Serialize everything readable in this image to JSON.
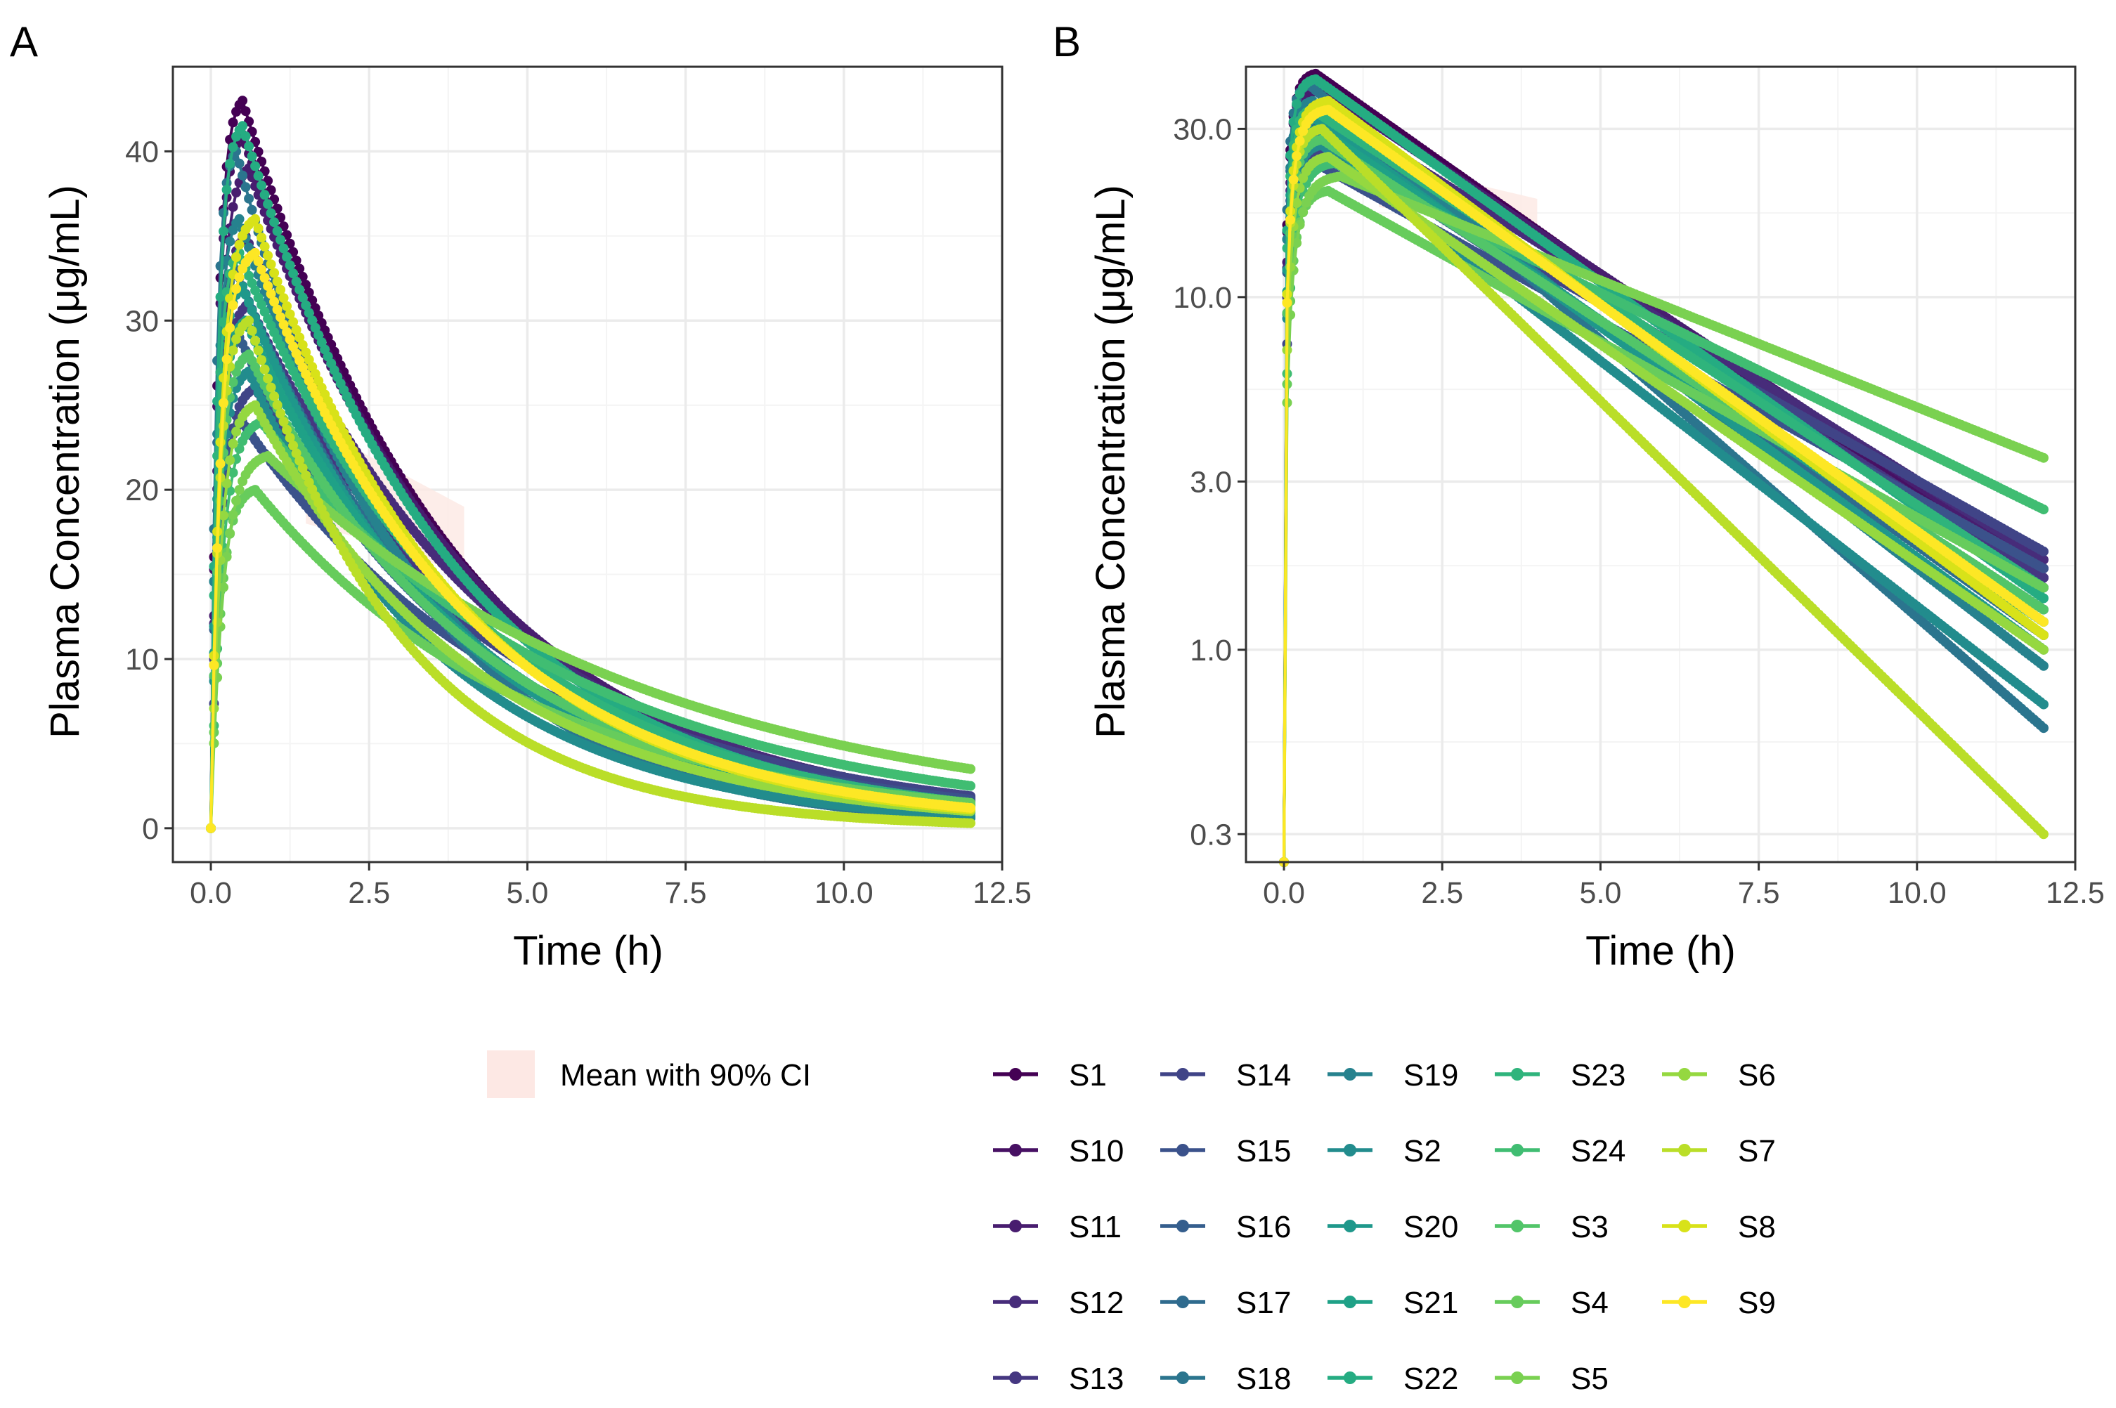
{
  "colors": {
    "panel_border": "#333333",
    "grid_major": "#ebebeb",
    "grid_minor": "#f4f4f4",
    "ci_fill": "#fde8e4",
    "tick_text": "#4d4d4d"
  },
  "panels": [
    {
      "tag": "A",
      "xlabel": "Time (h)",
      "ylabel": "Plasma Concentration (μg/mL)",
      "yscale": "linear",
      "xlim": [
        -0.6,
        12.5
      ],
      "ylim": [
        -2,
        45
      ],
      "xticks": [
        "0.0",
        "2.5",
        "5.0",
        "7.5",
        "10.0",
        "12.5"
      ],
      "yticks": [
        "0",
        "10",
        "20",
        "30",
        "40"
      ]
    },
    {
      "tag": "B",
      "xlabel": "Time (h)",
      "ylabel": "Plasma Concentration (μg/mL)",
      "yscale": "log10",
      "xlim": [
        -0.6,
        12.5
      ],
      "ylim": [
        0.25,
        45
      ],
      "xticks": [
        "0.0",
        "2.5",
        "5.0",
        "7.5",
        "10.0",
        "12.5"
      ],
      "yticks": [
        "0.3",
        "1.0",
        "3.0",
        "10.0",
        "30.0"
      ]
    }
  ],
  "legend": {
    "ci_label": "Mean with 90% CI",
    "subjects": [
      "S1",
      "S10",
      "S11",
      "S12",
      "S13",
      "S14",
      "S15",
      "S16",
      "S17",
      "S18",
      "S19",
      "S2",
      "S20",
      "S21",
      "S22",
      "S23",
      "S24",
      "S3",
      "S4",
      "S5",
      "S6",
      "S7",
      "S8",
      "S9"
    ]
  },
  "chart_data": {
    "type": "line",
    "x_label": "Time (h)",
    "y_label": "Plasma Concentration (μg/mL)",
    "x_range": [
      0,
      12
    ],
    "subjects": [
      {
        "name": "S1",
        "color": "#440154",
        "cmax": 43.0,
        "tmax": 0.5,
        "c12": 1.5
      },
      {
        "name": "S10",
        "color": "#471063",
        "cmax": 41.0,
        "tmax": 0.5,
        "c12": 1.6
      },
      {
        "name": "S11",
        "color": "#481d6f",
        "cmax": 39.0,
        "tmax": 0.6,
        "c12": 1.7
      },
      {
        "name": "S12",
        "color": "#472c7a",
        "cmax": 35.0,
        "tmax": 0.55,
        "c12": 1.8
      },
      {
        "name": "S13",
        "color": "#453781",
        "cmax": 31.0,
        "tmax": 0.6,
        "c12": 1.6
      },
      {
        "name": "S14",
        "color": "#404487",
        "cmax": 26.0,
        "tmax": 0.7,
        "c12": 1.9
      },
      {
        "name": "S15",
        "color": "#3b528b",
        "cmax": 24.0,
        "tmax": 0.5,
        "c12": 1.7
      },
      {
        "name": "S16",
        "color": "#355e8d",
        "cmax": 29.0,
        "tmax": 0.45,
        "c12": 1.3
      },
      {
        "name": "S17",
        "color": "#2f6b8e",
        "cmax": 33.0,
        "tmax": 0.4,
        "c12": 1.1
      },
      {
        "name": "S18",
        "color": "#2b758e",
        "cmax": 40.0,
        "tmax": 0.4,
        "c12": 0.6
      },
      {
        "name": "S19",
        "color": "#26828e",
        "cmax": 36.0,
        "tmax": 0.45,
        "c12": 0.9
      },
      {
        "name": "S2",
        "color": "#228c8d",
        "cmax": 27.0,
        "tmax": 0.6,
        "c12": 0.7
      },
      {
        "name": "S20",
        "color": "#1f988b",
        "cmax": 32.0,
        "tmax": 0.5,
        "c12": 1.0
      },
      {
        "name": "S21",
        "color": "#1fa187",
        "cmax": 30.0,
        "tmax": 0.55,
        "c12": 1.2
      },
      {
        "name": "S22",
        "color": "#25ac82",
        "cmax": 41.5,
        "tmax": 0.5,
        "c12": 1.4
      },
      {
        "name": "S23",
        "color": "#2fb47c",
        "cmax": 34.0,
        "tmax": 0.45,
        "c12": 1.5
      },
      {
        "name": "S24",
        "color": "#40bd72",
        "cmax": 24.0,
        "tmax": 0.8,
        "c12": 2.5
      },
      {
        "name": "S3",
        "color": "#52c569",
        "cmax": 28.0,
        "tmax": 0.6,
        "c12": 1.3
      },
      {
        "name": "S4",
        "color": "#67cc5c",
        "cmax": 20.0,
        "tmax": 0.7,
        "c12": 1.5
      },
      {
        "name": "S5",
        "color": "#7ad151",
        "cmax": 22.0,
        "tmax": 0.9,
        "c12": 3.5
      },
      {
        "name": "S6",
        "color": "#95d840",
        "cmax": 25.0,
        "tmax": 0.7,
        "c12": 1.0
      },
      {
        "name": "S7",
        "color": "#bade28",
        "cmax": 30.0,
        "tmax": 0.6,
        "c12": 0.3
      },
      {
        "name": "S8",
        "color": "#d8e219",
        "cmax": 36.0,
        "tmax": 0.7,
        "c12": 1.1
      },
      {
        "name": "S9",
        "color": "#fde725",
        "cmax": 34.0,
        "tmax": 0.7,
        "c12": 1.2
      }
    ],
    "mean_ci": {
      "label": "Mean with 90% CI",
      "t": [
        1.5,
        2.5,
        4.0
      ],
      "lower": [
        18.0,
        17.0,
        15.0
      ],
      "upper": [
        24.0,
        22.0,
        19.0
      ]
    }
  }
}
